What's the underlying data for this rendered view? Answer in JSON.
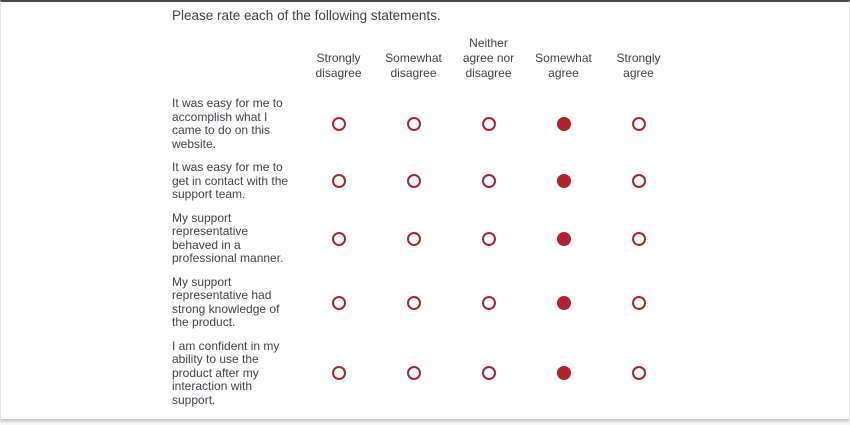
{
  "question": {
    "title": "Please rate each of the following statements.",
    "columns": [
      "Strongly disagree",
      "Somewhat disagree",
      "Neither agree nor disagree",
      "Somewhat agree",
      "Strongly agree"
    ],
    "rows": [
      {
        "label": "It was easy for me to accomplish what I came to do on this website.",
        "selected": "Somewhat agree",
        "selected_index": 3
      },
      {
        "label": "It was easy for me to get in contact with the support team.",
        "selected": "Somewhat agree",
        "selected_index": 3
      },
      {
        "label": "My support representative behaved in a professional manner.",
        "selected": "Somewhat agree",
        "selected_index": 3
      },
      {
        "label": "My support representative had strong knowledge of the product.",
        "selected": "Somewhat agree",
        "selected_index": 3
      },
      {
        "label": "I am confident in my ability to use the product after my interaction with support.",
        "selected": "Somewhat agree",
        "selected_index": 3
      }
    ],
    "colors": {
      "radio_accent": "#b2222e",
      "text": "#3e434b",
      "card_top_border": "#4a4a4a"
    }
  }
}
